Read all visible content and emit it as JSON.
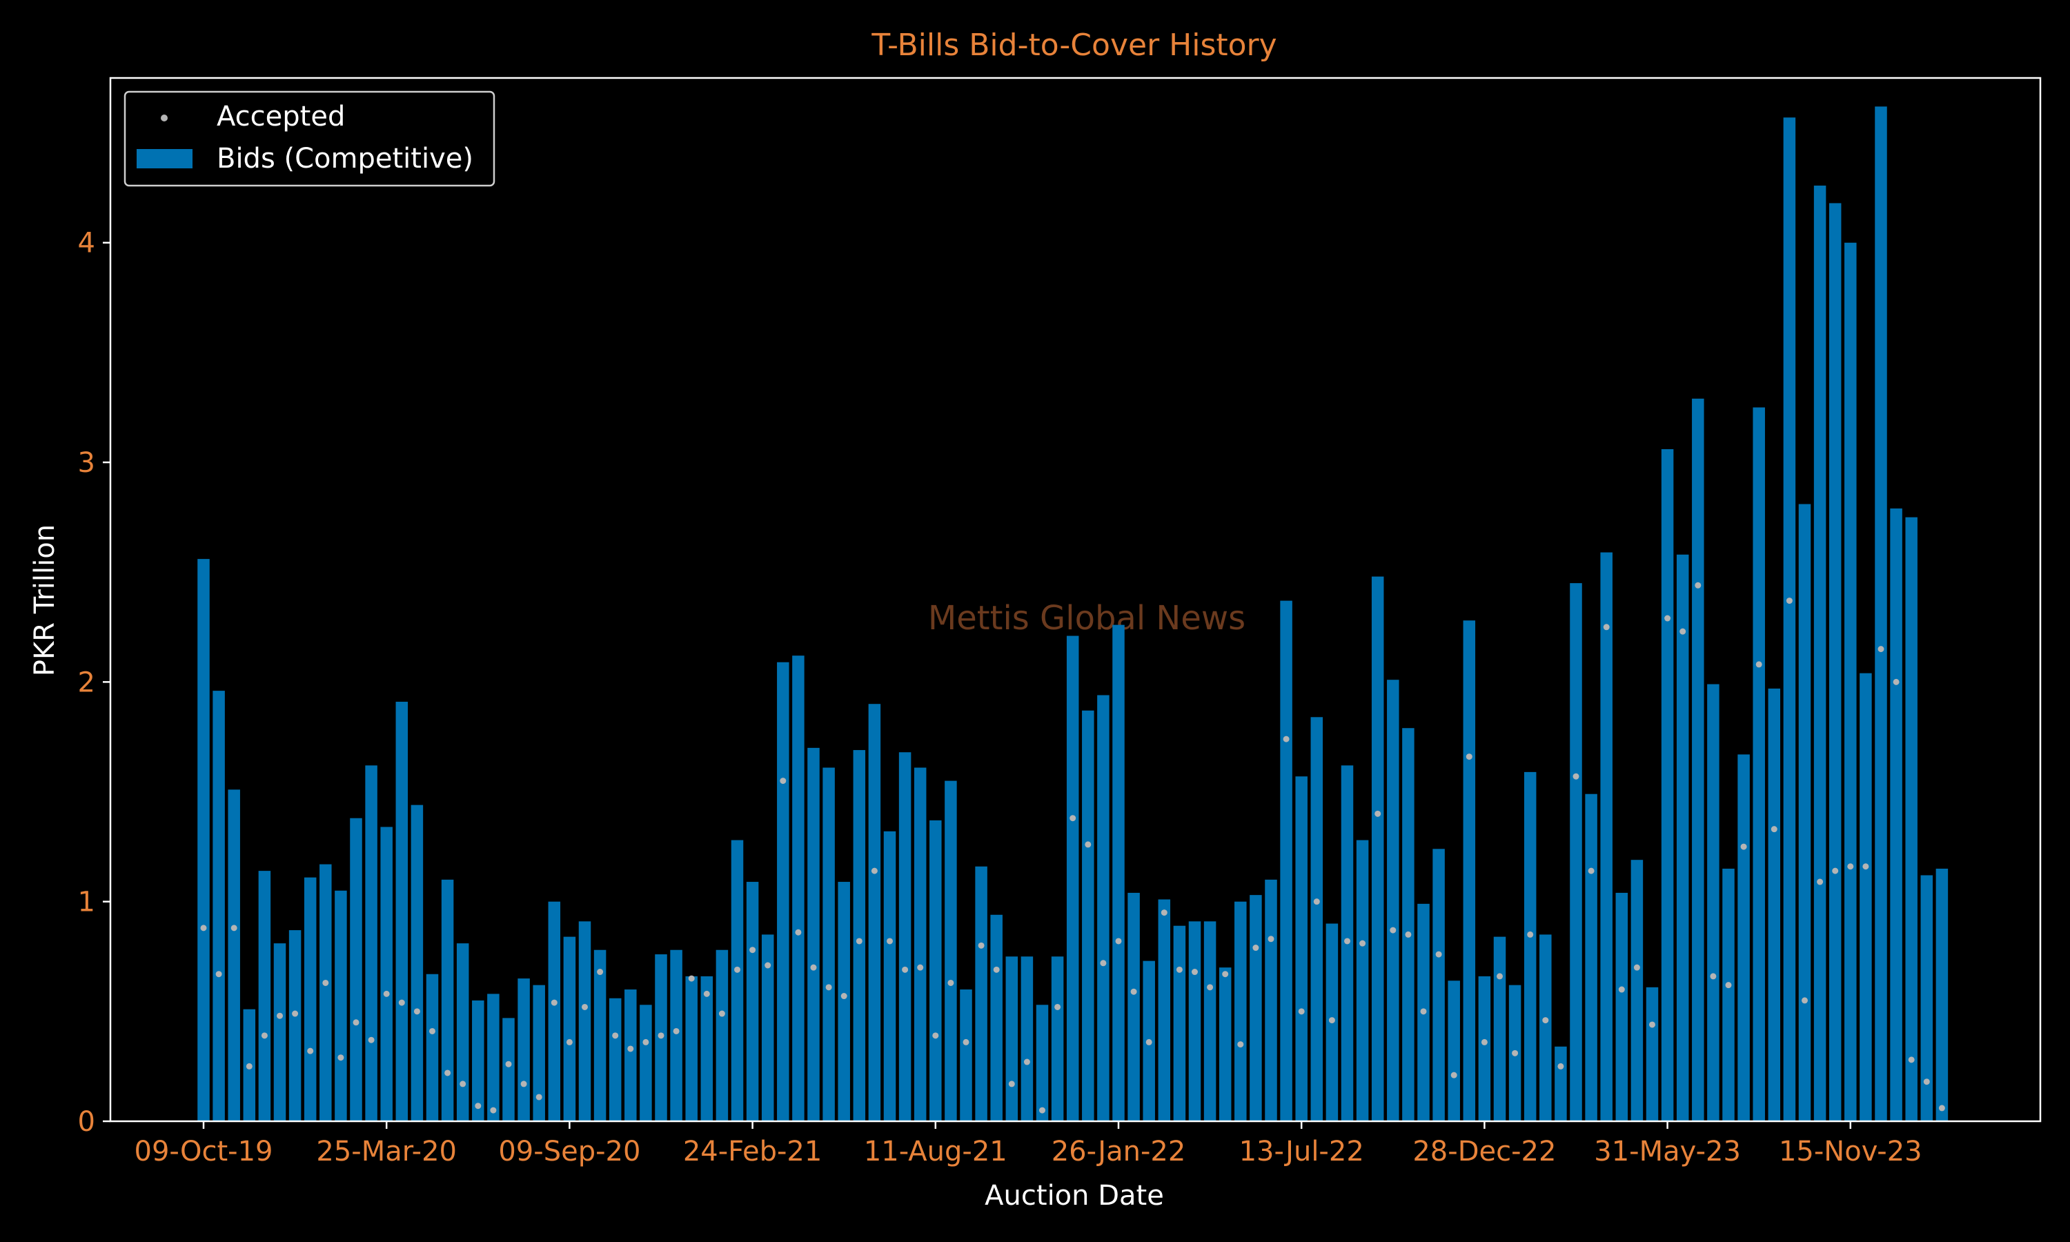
{
  "chart_data": {
    "type": "bar",
    "title": "T-Bills Bid-to-Cover History",
    "xlabel": "Auction Date",
    "ylabel": "PKR Trillion",
    "watermark": "Mettis Global News",
    "ylim": [
      0,
      4.75
    ],
    "y_ticks": [
      0,
      1,
      2,
      3,
      4
    ],
    "x_ticks": [
      "09-Oct-19",
      "25-Mar-20",
      "09-Sep-20",
      "24-Feb-21",
      "11-Aug-21",
      "26-Jan-22",
      "13-Jul-22",
      "28-Dec-22",
      "31-May-23",
      "15-Nov-23"
    ],
    "x_tick_positions": [
      0,
      12,
      24,
      36,
      48,
      60,
      72,
      84,
      96,
      108
    ],
    "grid": false,
    "legend_position": "top-left",
    "colors": {
      "background": "#000000",
      "bars": "#0072B2",
      "dots": "#b5b5b5",
      "tick_labels": "#E8833A",
      "title": "#E8833A",
      "axis_labels": "#ffffff",
      "axes": "#ffffff",
      "watermark": "#6b3a1e"
    },
    "series": [
      {
        "name": "Bids (Competitive)",
        "kind": "bar",
        "values": [
          2.56,
          1.96,
          1.51,
          0.51,
          1.14,
          0.81,
          0.87,
          1.11,
          1.17,
          1.05,
          1.38,
          1.62,
          1.34,
          1.91,
          1.44,
          0.67,
          1.1,
          0.81,
          0.55,
          0.58,
          0.47,
          0.65,
          0.62,
          1.0,
          0.84,
          0.91,
          0.78,
          0.56,
          0.6,
          0.53,
          0.76,
          0.78,
          0.66,
          0.66,
          0.78,
          1.28,
          1.09,
          0.85,
          2.09,
          2.12,
          1.7,
          1.61,
          1.09,
          1.69,
          1.9,
          1.32,
          1.68,
          1.61,
          1.37,
          1.55,
          0.6,
          1.16,
          0.94,
          0.75,
          0.75,
          0.53,
          0.75,
          2.21,
          1.87,
          1.94,
          2.26,
          1.04,
          0.73,
          1.01,
          0.89,
          0.91,
          0.91,
          0.7,
          1.0,
          1.03,
          1.1,
          2.37,
          1.57,
          1.84,
          0.9,
          1.62,
          1.28,
          2.48,
          2.01,
          1.79,
          0.99,
          1.24,
          0.64,
          2.28,
          0.66,
          0.84,
          0.62,
          1.59,
          0.85,
          0.34,
          2.45,
          1.49,
          2.59,
          1.04,
          1.19,
          0.61,
          3.06,
          2.58,
          3.29,
          1.99,
          1.15,
          1.67,
          3.25,
          1.97,
          4.57,
          2.81,
          4.26,
          4.18,
          4.0,
          2.04,
          4.62,
          2.79,
          2.75,
          1.12,
          1.15
        ]
      },
      {
        "name": "Accepted",
        "kind": "scatter",
        "values": [
          0.88,
          0.67,
          0.88,
          0.25,
          0.39,
          0.48,
          0.49,
          0.32,
          0.63,
          0.29,
          0.45,
          0.37,
          0.58,
          0.54,
          0.5,
          0.41,
          0.22,
          0.17,
          0.07,
          0.05,
          0.26,
          0.17,
          0.11,
          0.54,
          0.36,
          0.52,
          0.68,
          0.39,
          0.33,
          0.36,
          0.39,
          0.41,
          0.65,
          0.58,
          0.49,
          0.69,
          0.78,
          0.71,
          1.55,
          0.86,
          0.7,
          0.61,
          0.57,
          0.82,
          1.14,
          0.82,
          0.69,
          0.7,
          0.39,
          0.63,
          0.36,
          0.8,
          0.69,
          0.17,
          0.27,
          0.05,
          0.52,
          1.38,
          1.26,
          0.72,
          0.82,
          0.59,
          0.36,
          0.95,
          0.69,
          0.68,
          0.61,
          0.67,
          0.35,
          0.79,
          0.83,
          1.74,
          0.5,
          1.0,
          0.46,
          0.82,
          0.81,
          1.4,
          0.87,
          0.85,
          0.5,
          0.76,
          0.21,
          1.66,
          0.36,
          0.66,
          0.31,
          0.85,
          0.46,
          0.25,
          1.57,
          1.14,
          2.25,
          0.6,
          0.7,
          0.44,
          2.29,
          2.23,
          2.44,
          0.66,
          0.62,
          1.25,
          2.08,
          1.33,
          2.37,
          0.55,
          1.09,
          1.14,
          1.16,
          1.16,
          2.15,
          2.0,
          0.28,
          0.18,
          0.06
        ]
      }
    ]
  }
}
